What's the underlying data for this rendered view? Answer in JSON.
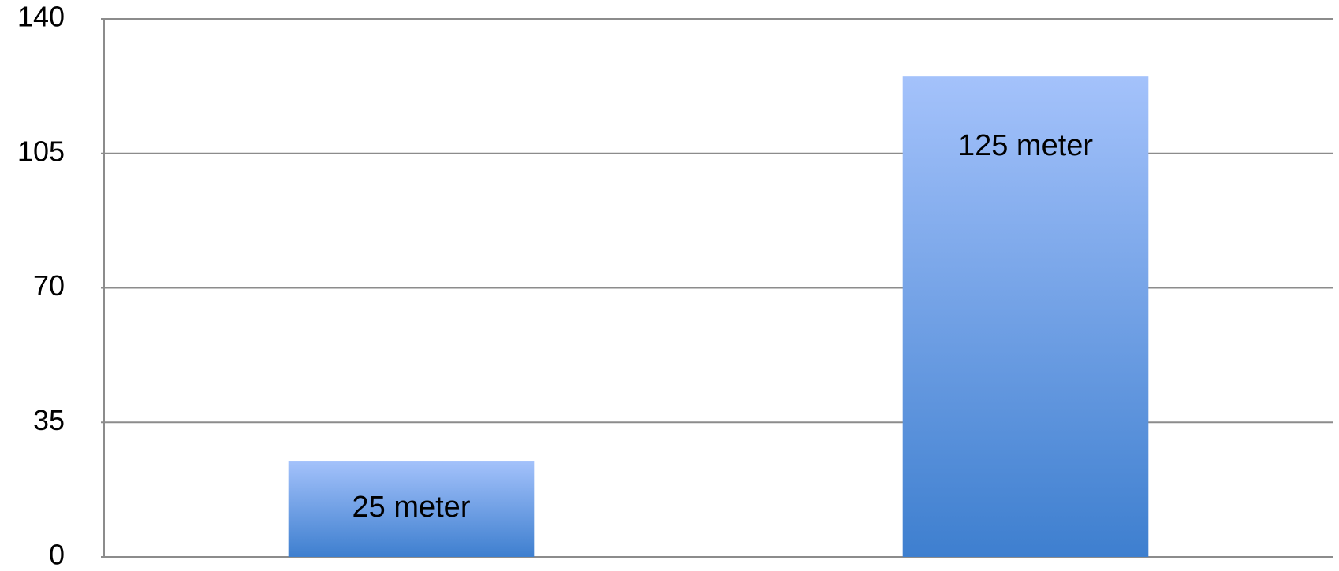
{
  "chart_data": {
    "type": "bar",
    "categories": [
      "",
      ""
    ],
    "values": [
      25,
      125
    ],
    "data_labels": [
      "25 meter",
      "125 meter"
    ],
    "title": "",
    "xlabel": "",
    "ylabel": "",
    "ylim": [
      0,
      140
    ],
    "y_ticks": [
      "0",
      "35",
      "70",
      "105",
      "140"
    ],
    "grid": true,
    "legend": "none",
    "colors": {
      "bar_top": "#a4c2fb",
      "bar_bottom": "#3e7fcf",
      "grid": "#8c8c8c"
    }
  }
}
